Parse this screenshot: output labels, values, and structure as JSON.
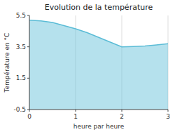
{
  "chart_data": {
    "type": "area",
    "title": "Evolution de la température",
    "xlabel": "heure par heure",
    "ylabel": "Température en °C",
    "x": [
      0,
      0.25,
      0.5,
      0.75,
      1.0,
      1.25,
      1.5,
      1.75,
      2.0,
      2.25,
      2.5,
      2.75,
      3.0
    ],
    "values": [
      5.2,
      5.15,
      5.05,
      4.85,
      4.65,
      4.4,
      4.1,
      3.8,
      3.5,
      3.52,
      3.55,
      3.62,
      3.7
    ],
    "color": "#5bbcd6",
    "xlim": [
      0,
      3
    ],
    "ylim": [
      -0.5,
      5.5
    ],
    "xticks": [
      0,
      1,
      2,
      3
    ],
    "yticks": [
      -0.5,
      1.5,
      3.5,
      5.5
    ],
    "grid": "x"
  }
}
